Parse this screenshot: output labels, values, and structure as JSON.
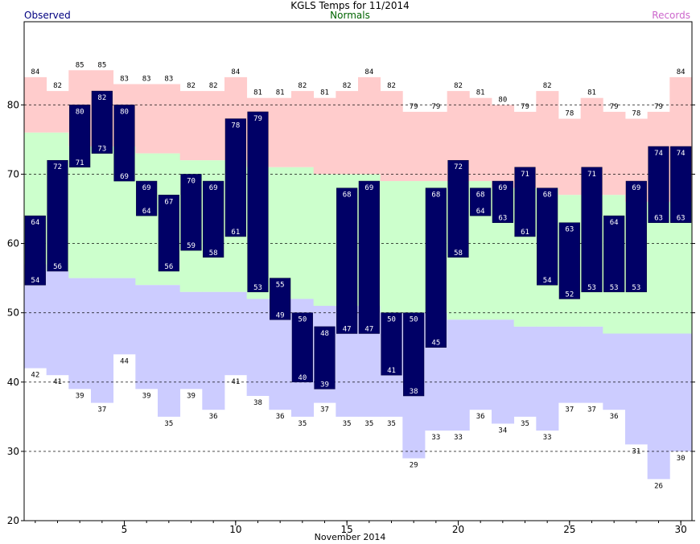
{
  "title": "KGLS Temps for 11/2014",
  "legend": {
    "observed": {
      "label": "Observed",
      "color": "#000080"
    },
    "normals": {
      "label": "Normals",
      "color": "#006400"
    },
    "records": {
      "label": "Records",
      "color": "#CC66CC"
    }
  },
  "chart_data": {
    "type": "bar",
    "title": "KGLS Temps for 11/2014",
    "xlabel": "November 2014",
    "ylabel": "",
    "ylim": [
      20,
      92
    ],
    "xlim": [
      1,
      30
    ],
    "y_ticks": [
      20,
      30,
      40,
      50,
      60,
      70,
      80
    ],
    "x_ticks": [
      5,
      10,
      15,
      20,
      25,
      30
    ],
    "grid": "horizontal dashed",
    "days": [
      1,
      2,
      3,
      4,
      5,
      6,
      7,
      8,
      9,
      10,
      11,
      12,
      13,
      14,
      15,
      16,
      17,
      18,
      19,
      20,
      21,
      22,
      23,
      24,
      25,
      26,
      27,
      28,
      29,
      30
    ],
    "series": [
      {
        "name": "Observed",
        "color": "#000080",
        "high": [
          64,
          72,
          80,
          82,
          80,
          69,
          67,
          70,
          69,
          78,
          79,
          55,
          50,
          48,
          68,
          69,
          50,
          50,
          68,
          72,
          68,
          69,
          71,
          68,
          63,
          71,
          64,
          69,
          74,
          74
        ],
        "low": [
          54,
          56,
          71,
          73,
          69,
          64,
          56,
          59,
          58,
          61,
          53,
          49,
          40,
          39,
          47,
          47,
          41,
          38,
          45,
          58,
          64,
          63,
          61,
          54,
          52,
          53,
          53,
          53,
          63,
          63
        ]
      },
      {
        "name": "Normals",
        "color": "#CCFFCC",
        "high": [
          76,
          76,
          74,
          74,
          74,
          73,
          73,
          72,
          72,
          72,
          71,
          71,
          71,
          70,
          70,
          70,
          69,
          69,
          69,
          69,
          69,
          68,
          68,
          68,
          67,
          67,
          67,
          66,
          66,
          66
        ],
        "low": [
          57,
          56,
          55,
          55,
          55,
          54,
          54,
          53,
          53,
          53,
          52,
          52,
          52,
          51,
          51,
          51,
          50,
          50,
          50,
          49,
          49,
          49,
          48,
          48,
          48,
          48,
          47,
          47,
          47,
          47
        ]
      },
      {
        "name": "Records",
        "color": "#FFCCCC",
        "high": [
          84,
          82,
          85,
          85,
          83,
          83,
          83,
          82,
          82,
          84,
          81,
          81,
          82,
          81,
          82,
          84,
          82,
          79,
          79,
          82,
          81,
          80,
          79,
          82,
          78,
          81,
          79,
          78,
          79,
          84
        ],
        "low": [
          42,
          41,
          39,
          37,
          44,
          39,
          35,
          39,
          36,
          41,
          38,
          36,
          35,
          37,
          35,
          35,
          35,
          29,
          33,
          33,
          36,
          34,
          35,
          33,
          37,
          37,
          36,
          31,
          26,
          30
        ]
      }
    ]
  }
}
